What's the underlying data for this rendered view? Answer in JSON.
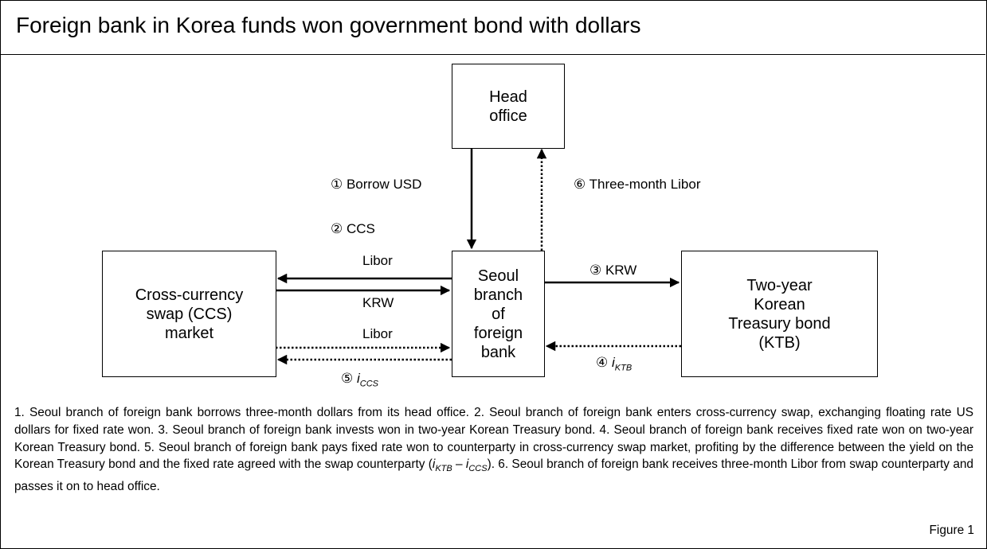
{
  "header": {
    "title": "Foreign bank in Korea funds won government bond with dollars"
  },
  "nodes": [
    {
      "id": "head",
      "lines": [
        "Head",
        "office"
      ]
    },
    {
      "id": "ccs",
      "lines": [
        "Cross-currency",
        "swap (CCS)",
        "market"
      ]
    },
    {
      "id": "seoul",
      "lines": [
        "Seoul",
        "branch",
        "of",
        "foreign",
        "bank"
      ]
    },
    {
      "id": "ktb",
      "lines": [
        "Two-year",
        "Korean",
        "Treasury bond",
        "(KTB)"
      ]
    }
  ],
  "labels": {
    "borrow": "① Borrow  USD",
    "libor_head": "⑥ Three-month Libor",
    "ccs": "② CCS",
    "libor_top": "Libor",
    "krw_left": "KRW",
    "libor_dotted": "Libor",
    "krw_right": "③ KRW",
    "i_ccs": {
      "number": "⑤",
      "symbol": "i",
      "subscript": "CCS"
    },
    "i_ktb": {
      "number": "④",
      "symbol": "i",
      "subscript": "KTB"
    }
  },
  "footnote": {
    "before": "1. Seoul branch of foreign bank borrows three-month dollars from its head office. 2. Seoul branch of foreign bank enters cross-currency swap, exchanging floating rate US dollars for fixed rate won.  3. Seoul branch of foreign bank invests won in two-year Korean Treasury bond. 4. Seoul branch of foreign bank receives fixed rate won on two-year Korean Treasury bond. 5. Seoul branch of foreign bank pays fixed rate won to counterparty in cross-currency swap market, profiting by the difference between the yield on the Korean Treasury bond and the fixed rate agreed with the swap counterparty (",
    "expr": [
      {
        "symbol": "i",
        "subscript": "KTB"
      },
      " – ",
      {
        "symbol": "i",
        "subscript": "CCS"
      }
    ],
    "after": ").  6. Seoul branch of foreign bank receives three-month Libor from swap counterparty and passes it on to head office.",
    "figure": "Figure 1"
  }
}
